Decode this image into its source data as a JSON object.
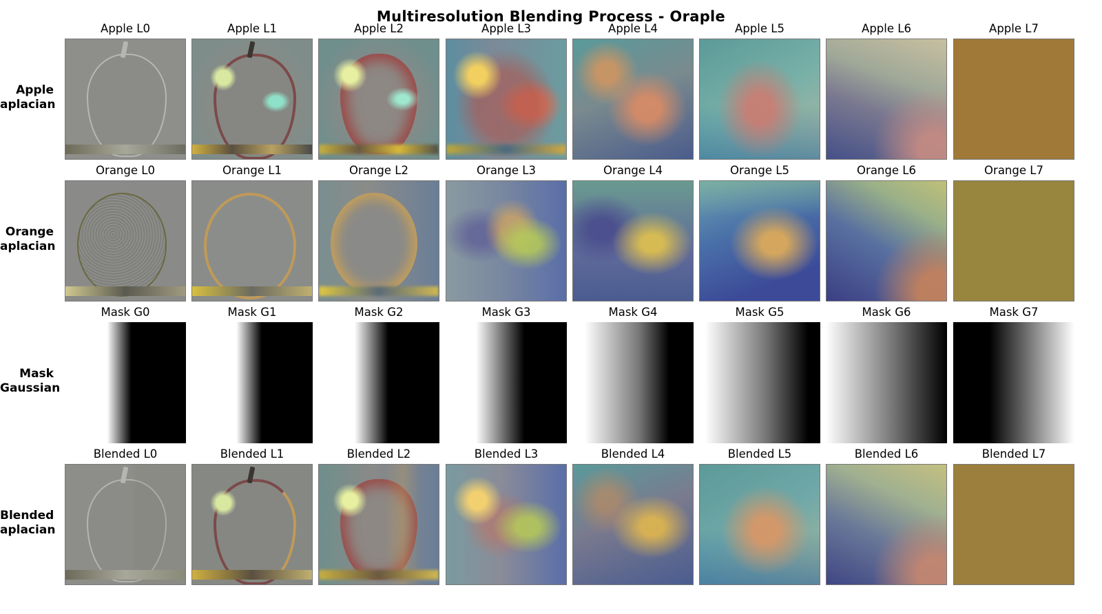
{
  "figure": {
    "title": "Multiresolution Blending Process - Oraple"
  },
  "rows": [
    {
      "id": "apple",
      "label_line1": "Apple",
      "label_line2": "aplacian",
      "cells": [
        "Apple L0",
        "Apple L1",
        "Apple L2",
        "Apple L3",
        "Apple L4",
        "Apple L5",
        "Apple L6",
        "Apple L7"
      ]
    },
    {
      "id": "orange",
      "label_line1": "Orange",
      "label_line2": "aplacian",
      "cells": [
        "Orange L0",
        "Orange L1",
        "Orange L2",
        "Orange L3",
        "Orange L4",
        "Orange L5",
        "Orange L6",
        "Orange L7"
      ]
    },
    {
      "id": "mask",
      "label_line1": "Mask",
      "label_line2": "Gaussian",
      "cells": [
        "Mask G0",
        "Mask G1",
        "Mask G2",
        "Mask G3",
        "Mask G4",
        "Mask G5",
        "Mask G6",
        "Mask G7"
      ]
    },
    {
      "id": "blended",
      "label_line1": "Blended",
      "label_line2": "aplacian",
      "cells": [
        "Blended L0",
        "Blended L1",
        "Blended L2",
        "Blended L3",
        "Blended L4",
        "Blended L5",
        "Blended L6",
        "Blended L7"
      ]
    }
  ],
  "colors": {
    "laplacian_gray": "#8e8f8b",
    "apple_red": "#a8534a",
    "apple_teal": "#6aa59f",
    "orange_yellow": "#d8b54a",
    "deep_blue": "#3f4f8c",
    "apple_L7": "#a07838",
    "orange_L7": "#98853e",
    "blended_L7": "#9c7f3c",
    "mask_white": "#ffffff",
    "mask_black": "#000000"
  }
}
